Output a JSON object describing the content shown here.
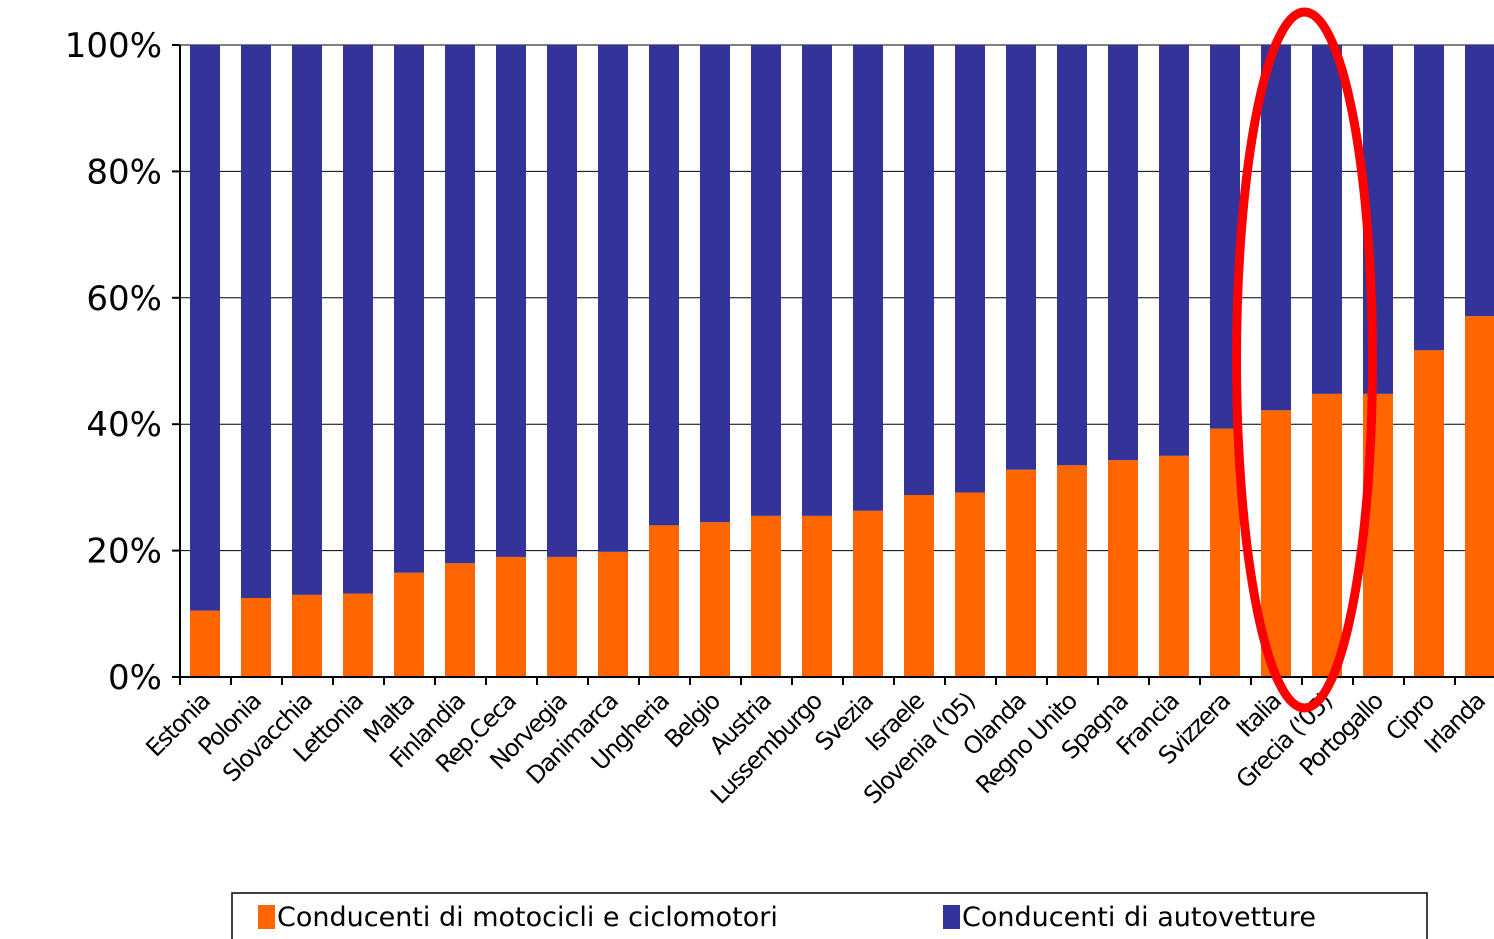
{
  "chart_data": {
    "type": "bar",
    "stacked": true,
    "categories": [
      "Estonia",
      "Polonia",
      "Slovacchia",
      "Lettonia",
      "Malta",
      "Finlandia",
      "Rep.Ceca",
      "Norvegia",
      "Danimarca",
      "Ungheria",
      "Belgio",
      "Austria",
      "Lussemburgo",
      "Svezia",
      "Israele",
      "Slovenia ('05)",
      "Olanda",
      "Regno Unito",
      "Spagna",
      "Francia",
      "Svizzera",
      "Italia",
      "Grecia ('05)",
      "Portogallo",
      "Cipro",
      "Irlanda"
    ],
    "series": [
      {
        "name": "Conducenti di motocicli e ciclomotori",
        "color": "#ff6600",
        "values": [
          10.5,
          12.5,
          13,
          13.2,
          16.5,
          18,
          19,
          19,
          19.8,
          24,
          24.5,
          25.5,
          25.5,
          26.3,
          28.8,
          29.2,
          32.8,
          33.5,
          34.3,
          35,
          39.3,
          42.2,
          44.8,
          44.8,
          51.7,
          57.1
        ]
      },
      {
        "name": "Conducenti di autovetture",
        "color": "#333399",
        "values": [
          89.5,
          87.5,
          87,
          86.8,
          83.5,
          82,
          81,
          81,
          80.2,
          76,
          75.5,
          74.5,
          74.5,
          73.7,
          71.2,
          70.8,
          67.2,
          66.5,
          65.7,
          65,
          60.7,
          57.8,
          55.2,
          55.2,
          48.3,
          42.9
        ]
      }
    ],
    "yticks": [
      "0%",
      "20%",
      "40%",
      "60%",
      "80%",
      "100%"
    ],
    "ylim": [
      0,
      100
    ],
    "grid": true,
    "legend_position": "bottom",
    "highlight": {
      "categories": [
        "Italia",
        "Grecia ('05)"
      ],
      "color": "#ff0000",
      "shape": "ellipse"
    }
  }
}
